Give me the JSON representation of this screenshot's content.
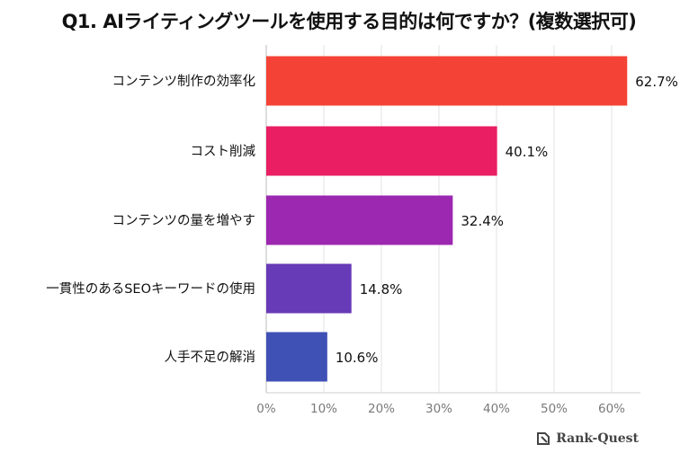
{
  "chart_data": {
    "type": "bar",
    "orientation": "horizontal",
    "title": "Q1. AIライティングツールを使用する目的は何ですか？(複数選択可)",
    "categories": [
      "コンテンツ制作の効率化",
      "コスト削減",
      "コンテンツの量を増やす",
      "一貫性のあるSEOキーワードの使用",
      "人手不足の解消"
    ],
    "values": [
      62.7,
      40.1,
      32.4,
      14.8,
      10.6
    ],
    "value_labels": [
      "62.7%",
      "40.1%",
      "32.4%",
      "14.8%",
      "10.6%"
    ],
    "colors": [
      "#f44336",
      "#e91e63",
      "#9c27b0",
      "#673ab7",
      "#3f51b5"
    ],
    "xlim": [
      0,
      65
    ],
    "xticks": [
      0,
      10,
      20,
      30,
      40,
      50,
      60
    ],
    "xtick_labels": [
      "0%",
      "10%",
      "20%",
      "30%",
      "40%",
      "50%",
      "60%"
    ],
    "xlabel": "",
    "ylabel": "",
    "grid": true
  },
  "brand": {
    "name": "Rank-Quest",
    "icon": "rank-quest-logo-icon"
  }
}
